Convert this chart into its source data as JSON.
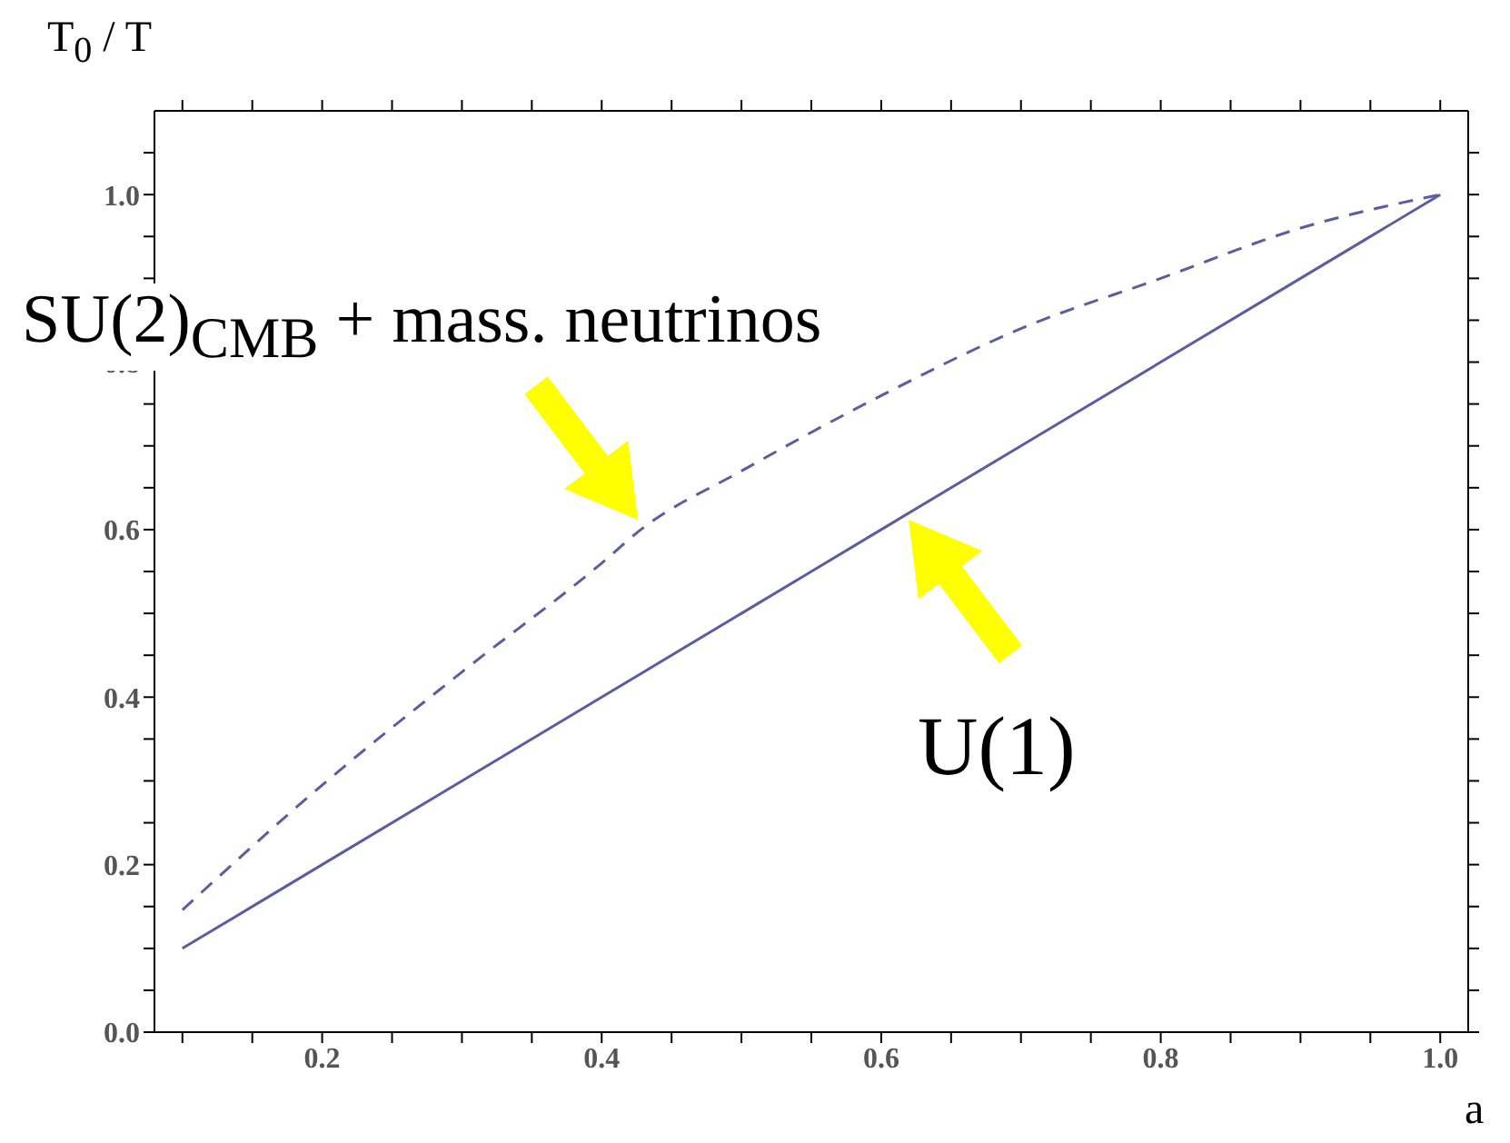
{
  "chart_data": {
    "type": "line",
    "xlabel": "a",
    "ylabel": "T$_{0}$ / T",
    "x": [
      0.1,
      0.2,
      0.3,
      0.4,
      0.428,
      0.5,
      0.6,
      0.7,
      0.8,
      0.9,
      1.0
    ],
    "series": [
      {
        "name": "SU(2)$_{CMB}$ + mass. neutrinos",
        "color": "#5c5ca0",
        "line_style": "dashed",
        "values": [
          0.146,
          0.295,
          0.43,
          0.56,
          0.6,
          0.67,
          0.76,
          0.84,
          0.9,
          0.96,
          1.0
        ]
      },
      {
        "name": "U(1)",
        "color": "#5c5ca0",
        "line_style": "solid",
        "values": [
          0.1,
          0.2,
          0.3,
          0.4,
          0.428,
          0.5,
          0.6,
          0.7,
          0.8,
          0.9,
          1.0
        ]
      }
    ],
    "xlim": [
      0.08,
      1.02
    ],
    "xticks": [
      {
        "value": 0.1,
        "label": null
      },
      {
        "value": 0.15,
        "label": null
      },
      "0.2",
      {
        "value": 0.25,
        "label": null
      },
      {
        "value": 0.3,
        "label": null
      },
      {
        "value": 0.35,
        "label": null
      },
      0.4,
      {
        "value": 0.45,
        "label": null
      },
      {
        "value": 0.5,
        "label": null
      },
      {
        "value": 0.55,
        "label": null
      },
      0.6,
      {
        "value": 0.65,
        "label": null
      },
      {
        "value": 0.7,
        "label": null
      },
      {
        "value": 0.75,
        "label": null
      },
      0.8,
      {
        "value": 0.85,
        "label": null
      },
      {
        "value": 0.9,
        "label": null
      },
      {
        "value": 0.95,
        "label": null
      },
      {
        "value": 1.0,
        "label": "1.0"
      }
    ],
    "ylim": [
      0,
      1.1
    ],
    "yticks": [
      {
        "value": 0,
        "label": "0.0"
      },
      {
        "value": 0.05,
        "label": null
      },
      {
        "value": 0.1,
        "label": null
      },
      {
        "value": 0.15,
        "label": null
      },
      0.2,
      {
        "value": 0.25,
        "label": null
      },
      {
        "value": 0.3,
        "label": null
      },
      {
        "value": 0.35,
        "label": null
      },
      0.4,
      {
        "value": 0.45,
        "label": null
      },
      {
        "value": 0.5,
        "label": null
      },
      {
        "value": 0.55,
        "label": null
      },
      0.6,
      {
        "value": 0.65,
        "label": null
      },
      {
        "value": 0.7,
        "label": null
      },
      {
        "value": 0.75,
        "label": null
      },
      0.8,
      {
        "value": 0.85,
        "label": null
      },
      {
        "value": 0.9,
        "label": null
      },
      {
        "value": 0.95,
        "label": null
      },
      {
        "value": 1.0,
        "label": "1.0"
      },
      {
        "value": 1.05,
        "label": null
      }
    ],
    "grid": false
  }
}
